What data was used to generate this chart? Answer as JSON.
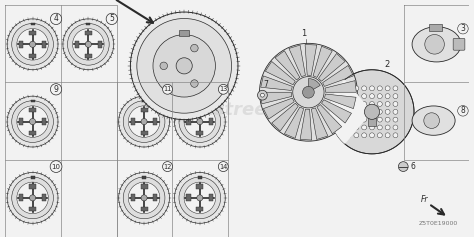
{
  "background_color": "#f2f2f2",
  "line_color": "#2a2a2a",
  "gray1": "#e0e0e0",
  "gray2": "#d0d0d0",
  "gray3": "#c0c0c0",
  "gray4": "#b0b0b0",
  "grid_color": "#888888",
  "watermark": "Partstree",
  "part_code": "Z5T0E19000",
  "figsize": [
    4.74,
    2.37
  ],
  "dpi": 100,
  "grid_cols": [
    0,
    57,
    114,
    171,
    228
  ],
  "grid_rows": [
    0,
    79,
    158,
    237
  ]
}
